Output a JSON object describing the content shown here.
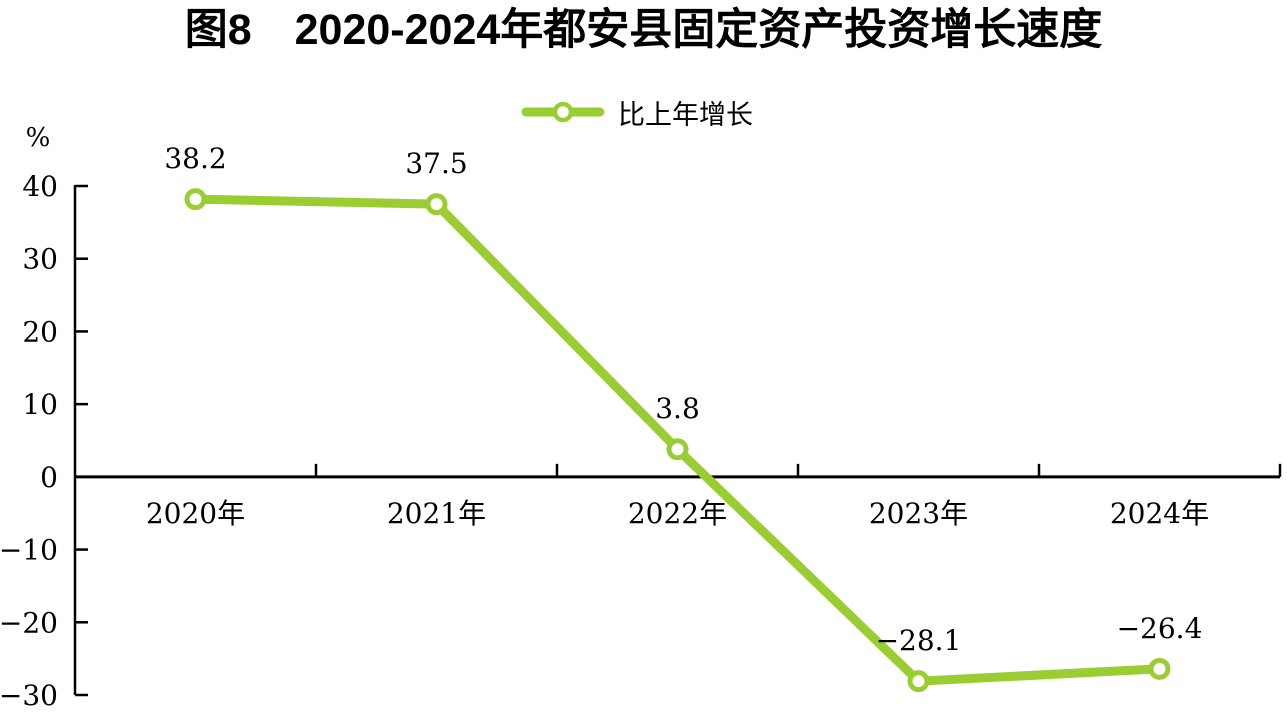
{
  "title": "图8　2020-2024年都安县固定资产投资增长速度",
  "legend": {
    "label": "比上年增长"
  },
  "chart_data": {
    "type": "line",
    "title": "图8　2020-2024年都安县固定资产投资增长速度",
    "unit_label": "%",
    "categories": [
      "2020年",
      "2021年",
      "2022年",
      "2023年",
      "2024年"
    ],
    "series": [
      {
        "name": "比上年增长",
        "values": [
          38.2,
          37.5,
          3.8,
          -28.1,
          -26.4
        ],
        "data_labels": [
          "38.2",
          "37.5",
          "3.8",
          "−28.1",
          "−26.4"
        ],
        "color": "#9ACD32"
      }
    ],
    "xlabel": "",
    "ylabel": "%",
    "ylim": [
      -30,
      40
    ],
    "yticks": [
      40,
      30,
      20,
      10,
      0,
      -10,
      -20,
      -30
    ],
    "ytick_labels": [
      "40",
      "30",
      "20",
      "10",
      "0",
      "−10",
      "−20",
      "−30"
    ],
    "grid": false,
    "legend_position": "top-center",
    "marker": "circle-open",
    "axis_color": "#000000",
    "text_color": "#000000",
    "background_color": "#ffffff"
  }
}
